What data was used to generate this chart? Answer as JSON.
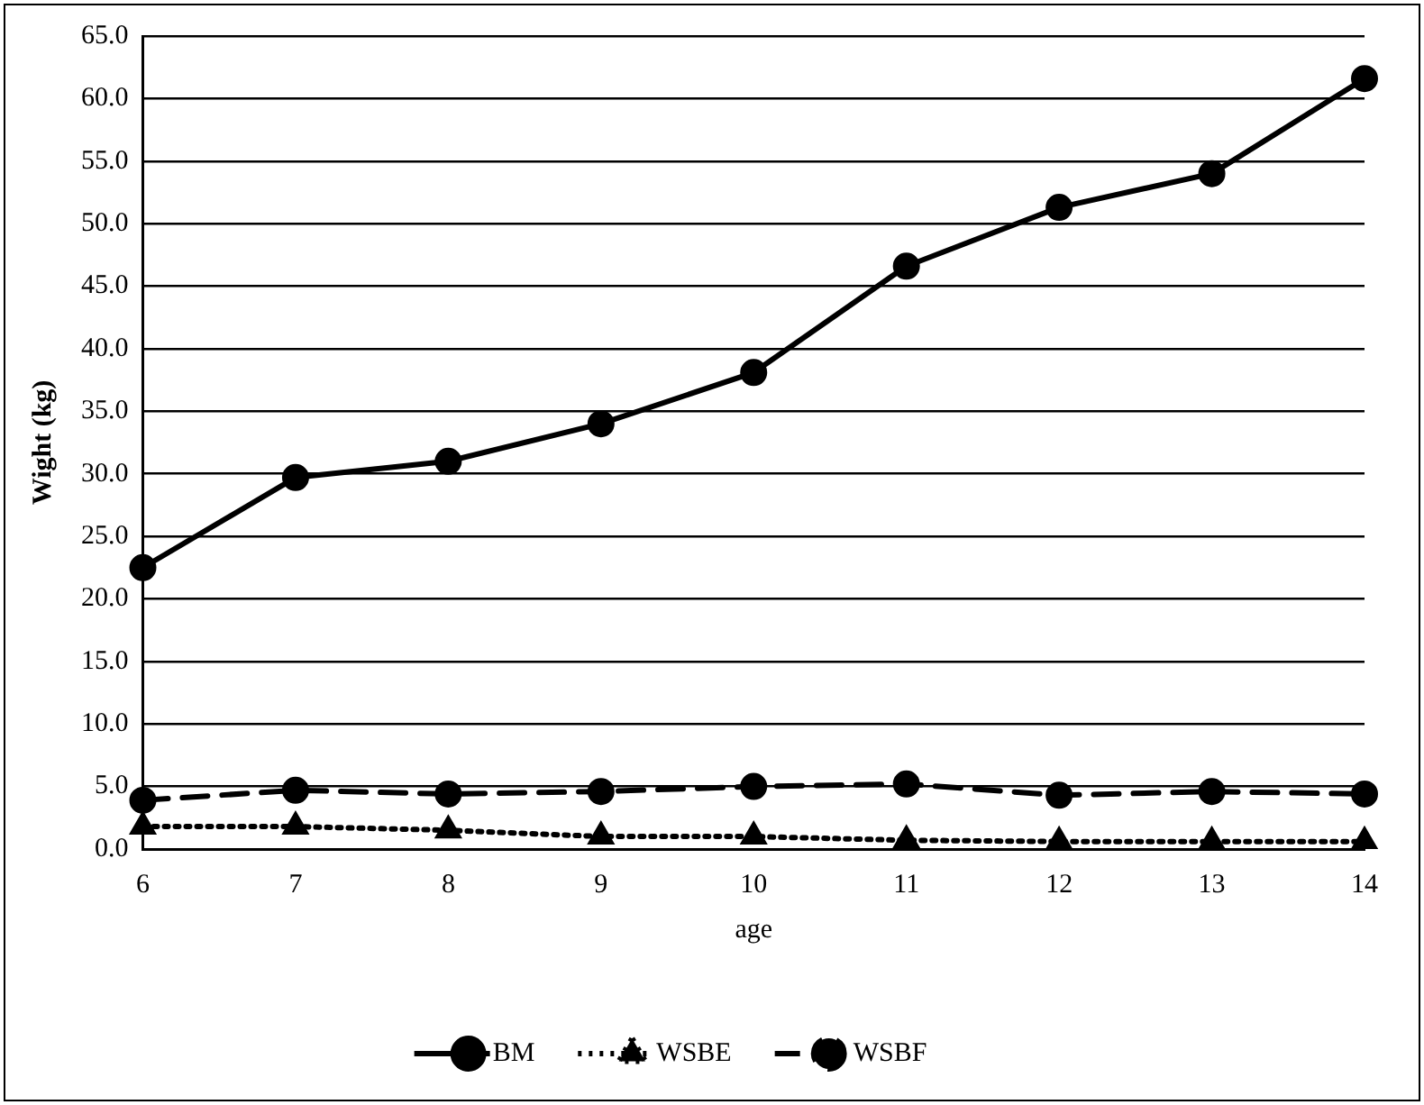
{
  "chart_data": {
    "type": "line",
    "xlabel": "age",
    "ylabel": "Wight (kg)",
    "categories": [
      "6",
      "7",
      "8",
      "9",
      "10",
      "11",
      "12",
      "13",
      "14"
    ],
    "series": [
      {
        "name": "BM",
        "color": "#000000",
        "marker": "circle",
        "line_style": "solid",
        "values": [
          22.5,
          29.7,
          31.0,
          34.0,
          38.1,
          46.6,
          51.3,
          54.0,
          61.6
        ]
      },
      {
        "name": "WSBE",
        "color": "#000000",
        "marker": "triangle",
        "line_style": "dotted",
        "values": [
          1.8,
          1.8,
          1.5,
          1.0,
          1.0,
          0.7,
          0.6,
          0.6,
          0.6
        ]
      },
      {
        "name": "WSBF",
        "color": "#000000",
        "marker": "circle",
        "line_style": "dashed",
        "values": [
          3.9,
          4.7,
          4.4,
          4.6,
          5.0,
          5.2,
          4.3,
          4.6,
          4.4
        ]
      }
    ],
    "ylim": [
      0,
      65
    ],
    "yticks": [
      {
        "value": 0,
        "label": "0.0"
      },
      {
        "value": 5,
        "label": "5.0"
      },
      {
        "value": 10,
        "label": "10.0"
      },
      {
        "value": 15,
        "label": "15.0"
      },
      {
        "value": 20,
        "label": "20.0"
      },
      {
        "value": 25,
        "label": "25.0"
      },
      {
        "value": 30,
        "label": "30.0"
      },
      {
        "value": 35,
        "label": "35.0"
      },
      {
        "value": 40,
        "label": "40.0"
      },
      {
        "value": 45,
        "label": "45.0"
      },
      {
        "value": 50,
        "label": "50.0"
      },
      {
        "value": 55,
        "label": "55.0"
      },
      {
        "value": 60,
        "label": "60.0"
      },
      {
        "value": 65,
        "label": "65.0"
      }
    ],
    "grid": "y",
    "legend": "bottom"
  }
}
